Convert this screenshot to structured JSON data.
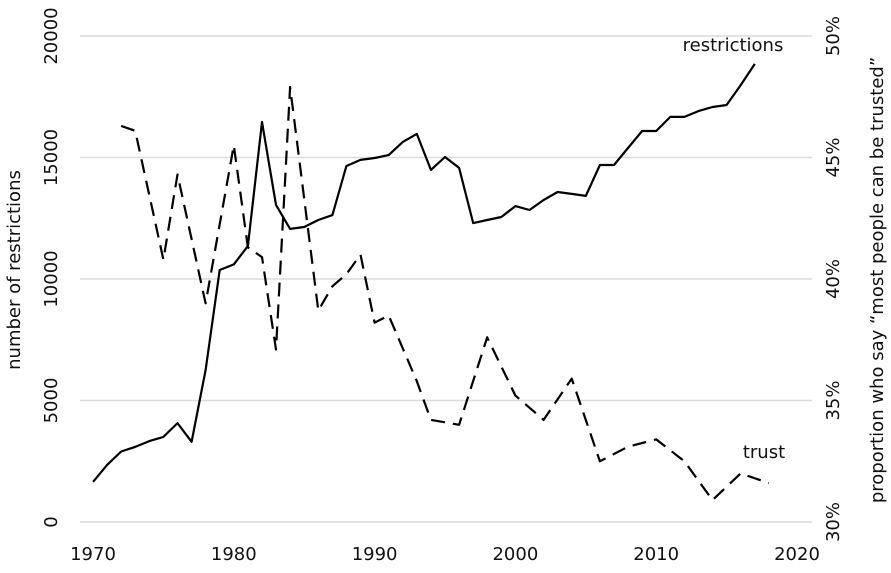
{
  "chart_data": {
    "type": "line",
    "xlabel": null,
    "ylabel": "number of restrictions",
    "y2label": "proportion who say “most people can be trusted”",
    "annotations": [
      "restrictions",
      "trust"
    ],
    "xlim": [
      1970,
      2020
    ],
    "xticks": [
      1970,
      1980,
      1990,
      2000,
      2010,
      2020
    ],
    "ylim": [
      0,
      20000
    ],
    "yticks": [
      0,
      5000,
      10000,
      15000,
      20000
    ],
    "y2lim": [
      30,
      50
    ],
    "y2ticks": [
      {
        "value": 30,
        "label": "30%"
      },
      {
        "value": 35,
        "label": "35%"
      },
      {
        "value": 40,
        "label": "40%"
      },
      {
        "value": 45,
        "label": "45%"
      },
      {
        "value": 50,
        "label": "50%"
      }
    ],
    "grid": true,
    "series": [
      {
        "name": "restrictions",
        "color": "#000000",
        "dash": false,
        "x": [
          1970,
          1971,
          1972,
          1973,
          1974,
          1975,
          1976,
          1977,
          1978,
          1979,
          1980,
          1981,
          1982,
          1983,
          1984,
          1985,
          1986,
          1987,
          1988,
          1989,
          1990,
          1991,
          1992,
          1993,
          1994,
          1995,
          1996,
          1997,
          1998,
          1999,
          2000,
          2001,
          2002,
          2003,
          2004,
          2005,
          2006,
          2007,
          2008,
          2009,
          2010,
          2011,
          2012,
          2013,
          2014,
          2015,
          2016,
          2017
        ],
        "values": [
          1650,
          2350,
          2900,
          3090,
          3330,
          3500,
          4070,
          3300,
          6250,
          10370,
          10600,
          11360,
          16460,
          13050,
          12060,
          12140,
          12430,
          12630,
          14650,
          14900,
          14980,
          15100,
          15640,
          15970,
          14490,
          15020,
          14570,
          12300,
          12430,
          12550,
          13000,
          12840,
          13250,
          13580,
          13500,
          13420,
          14690,
          14690,
          15390,
          16090,
          16090,
          16670,
          16670,
          16910,
          17080,
          17160,
          17980,
          18850
        ]
      },
      {
        "name": "trust",
        "color": "#000000",
        "dash": true,
        "axis": "y2",
        "x": [
          1972,
          1973,
          1975,
          1976,
          1978,
          1980,
          1981,
          1982,
          1983,
          1984,
          1986,
          1987,
          1988,
          1989,
          1990,
          1991,
          1993,
          1994,
          1996,
          1998,
          2000,
          2002,
          2004,
          2006,
          2008,
          2010,
          2012,
          2014,
          2016,
          2018
        ],
        "values": [
          46.3,
          46.1,
          40.8,
          44.3,
          39.0,
          45.5,
          41.3,
          40.9,
          37.1,
          47.9,
          38.7,
          39.7,
          40.2,
          41.0,
          38.2,
          38.5,
          35.8,
          34.2,
          34.0,
          37.6,
          35.2,
          34.2,
          35.9,
          32.5,
          33.1,
          33.4,
          32.5,
          30.9,
          32.0,
          31.6
        ]
      }
    ]
  }
}
